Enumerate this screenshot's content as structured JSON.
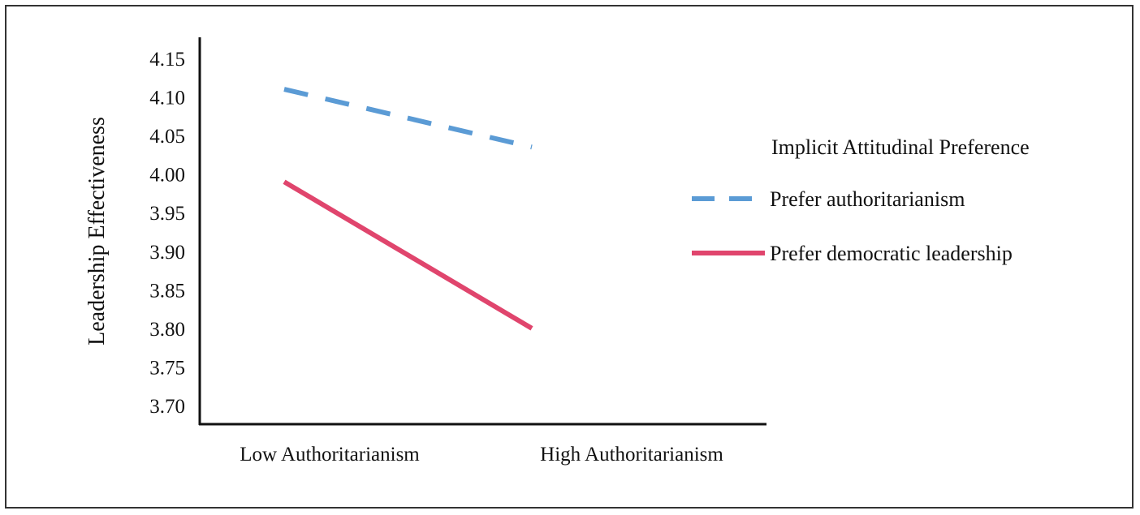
{
  "chart_data": {
    "type": "line",
    "categories": [
      "Low Authoritarianism",
      "High Authoritarianism"
    ],
    "series": [
      {
        "name": "Prefer authoritarianism",
        "values": [
          4.11,
          4.035
        ],
        "color": "#5b9bd5",
        "style": "dashed"
      },
      {
        "name": "Prefer democratic leadership",
        "values": [
          3.99,
          3.8
        ],
        "color": "#e0456d",
        "style": "solid"
      }
    ],
    "ylabel": "Leadership  Effectiveness",
    "xlabel": "",
    "ylim": [
      3.7,
      4.15
    ],
    "yticks": [
      "4.15",
      "4.10",
      "4.05",
      "4.00",
      "3.95",
      "3.90",
      "3.85",
      "3.80",
      "3.75",
      "3.70"
    ],
    "legend": {
      "title": "Implicit Attitudinal Preference",
      "placement": "right"
    },
    "grid": false
  }
}
